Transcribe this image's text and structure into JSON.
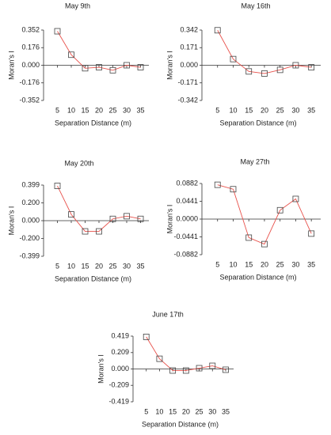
{
  "chart_data": [
    {
      "type": "line",
      "title": "May 9th",
      "xlabel": "Separation Distance (m)",
      "ylabel": "Moran's I",
      "x": [
        5,
        10,
        15,
        20,
        25,
        30,
        35
      ],
      "values": [
        0.34,
        0.105,
        -0.03,
        -0.02,
        -0.05,
        0.0,
        -0.02
      ],
      "color": "#e8504a",
      "xlim": [
        0,
        38
      ],
      "ylim": [
        -0.352,
        0.352
      ],
      "xticks": [
        5,
        10,
        15,
        20,
        25,
        30,
        35
      ],
      "yticks": [
        0.352,
        0.176,
        {
          "value": 0,
          "label": "0.000"
        },
        -0.176,
        -0.352
      ]
    },
    {
      "type": "line",
      "title": "May 16th",
      "xlabel": "Separation Distance (m)",
      "ylabel": "Moran's I",
      "x": [
        5,
        10,
        15,
        20,
        25,
        30,
        35
      ],
      "values": [
        0.34,
        0.06,
        -0.06,
        -0.08,
        -0.045,
        0.0,
        -0.02
      ],
      "color": "#e8504a",
      "xlim": [
        0,
        38
      ],
      "ylim": [
        -0.342,
        0.342
      ],
      "xticks": [
        5,
        10,
        15,
        20,
        25,
        30,
        35
      ],
      "yticks": [
        0.342,
        0.171,
        {
          "value": 0,
          "label": "0.000"
        },
        -0.171,
        -0.342
      ]
    },
    {
      "type": "line",
      "title": "May 20th",
      "xlabel": "Separation Distance (m)",
      "ylabel": "Moran's I",
      "x": [
        5,
        10,
        15,
        20,
        25,
        30,
        35
      ],
      "values": [
        0.39,
        0.07,
        -0.12,
        -0.12,
        0.02,
        0.05,
        0.02
      ],
      "color": "#e8504a",
      "xlim": [
        0,
        38
      ],
      "ylim": [
        -0.399,
        0.399
      ],
      "xticks": [
        5,
        10,
        15,
        20,
        25,
        30,
        35
      ],
      "yticks": [
        0.399,
        {
          "value": 0.2,
          "label": "0.200"
        },
        {
          "value": 0,
          "label": "0.000"
        },
        {
          "value": -0.2,
          "label": "-0.200"
        },
        -0.399
      ]
    },
    {
      "type": "line",
      "title": "May 27th",
      "xlabel": "Separation Distance (m)",
      "ylabel": "Moran's I",
      "x": [
        5,
        10,
        15,
        20,
        25,
        30,
        35
      ],
      "values": [
        0.085,
        0.074,
        -0.046,
        -0.062,
        0.022,
        0.05,
        -0.036
      ],
      "color": "#e8504a",
      "xlim": [
        0,
        38
      ],
      "ylim": [
        -0.0882,
        0.0882
      ],
      "xticks": [
        5,
        10,
        15,
        20,
        25,
        30,
        35
      ],
      "yticks": [
        0.0882,
        0.0441,
        {
          "value": 0,
          "label": "0.0000"
        },
        -0.0441,
        -0.0882
      ]
    },
    {
      "type": "line",
      "title": "June 17th",
      "xlabel": "Separation Distance (m)",
      "ylabel": "Moran's I",
      "x": [
        5,
        10,
        15,
        20,
        25,
        30,
        35
      ],
      "values": [
        0.41,
        0.13,
        -0.02,
        -0.02,
        0.01,
        0.04,
        -0.01
      ],
      "color": "#e8504a",
      "xlim": [
        0,
        38
      ],
      "ylim": [
        -0.419,
        0.419
      ],
      "xticks": [
        5,
        10,
        15,
        20,
        25,
        30,
        35
      ],
      "yticks": [
        0.419,
        0.209,
        {
          "value": 0,
          "label": "0.000"
        },
        -0.209,
        -0.419
      ]
    }
  ]
}
